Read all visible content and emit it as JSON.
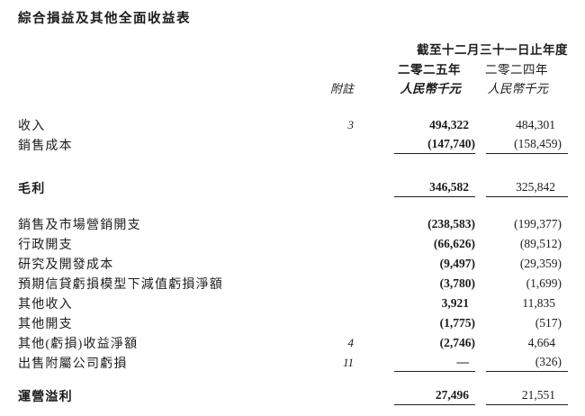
{
  "title": "綜合損益及其他全面收益表",
  "colors": {
    "background": "#ffffff",
    "text": "#1c1c1c",
    "rule": "#222222"
  },
  "table": {
    "period_header": "截至十二月三十一日止年度",
    "note_header": "附註",
    "col_2025": {
      "year": "二零二五年",
      "unit": "人民幣千元"
    },
    "col_2024": {
      "year": "二零二四年",
      "unit": "人民幣千元"
    },
    "rows": [
      {
        "type": "spacer",
        "h": 20
      },
      {
        "type": "item",
        "label": "收入",
        "note": "3",
        "v2025": "494,322",
        "v2024": "484,301"
      },
      {
        "type": "item",
        "label": "銷售成本",
        "note": "",
        "v2025": "(147,740)",
        "v2024": "(158,459)",
        "underline": true
      },
      {
        "type": "spacer",
        "h": 26
      },
      {
        "type": "item",
        "label": "毛利",
        "bold": true,
        "note": "",
        "v2025": "346,582",
        "v2024": "325,842",
        "underline": true
      },
      {
        "type": "spacer",
        "h": 18
      },
      {
        "type": "item",
        "label": "銷售及市場營銷開支",
        "note": "",
        "v2025": "(238,583)",
        "v2024": "(199,377)"
      },
      {
        "type": "item",
        "label": "行政開支",
        "note": "",
        "v2025": "(66,626)",
        "v2024": "(89,512)"
      },
      {
        "type": "item",
        "label": "研究及開發成本",
        "note": "",
        "v2025": "(9,497)",
        "v2024": "(29,359)"
      },
      {
        "type": "item",
        "label": "預期信貸虧損模型下減值虧損淨額",
        "note": "",
        "v2025": "(3,780)",
        "v2024": "(1,699)"
      },
      {
        "type": "item",
        "label": "其他收入",
        "note": "",
        "v2025": "3,921",
        "v2024": "11,835"
      },
      {
        "type": "item",
        "label": "其他開支",
        "note": "",
        "v2025": "(1,775)",
        "v2024": "(517)"
      },
      {
        "type": "item",
        "label": "其他(虧損)收益淨額",
        "note": "4",
        "v2025": "(2,746)",
        "v2024": "4,664"
      },
      {
        "type": "item",
        "label": "出售附屬公司虧損",
        "note": "11",
        "v2025": "—",
        "v2024": "(326)",
        "underline": true
      },
      {
        "type": "spacer",
        "h": 15
      },
      {
        "type": "item",
        "label": "運營溢利",
        "bold": true,
        "note": "",
        "v2025": "27,496",
        "v2024": "21,551",
        "underline": true
      }
    ]
  }
}
